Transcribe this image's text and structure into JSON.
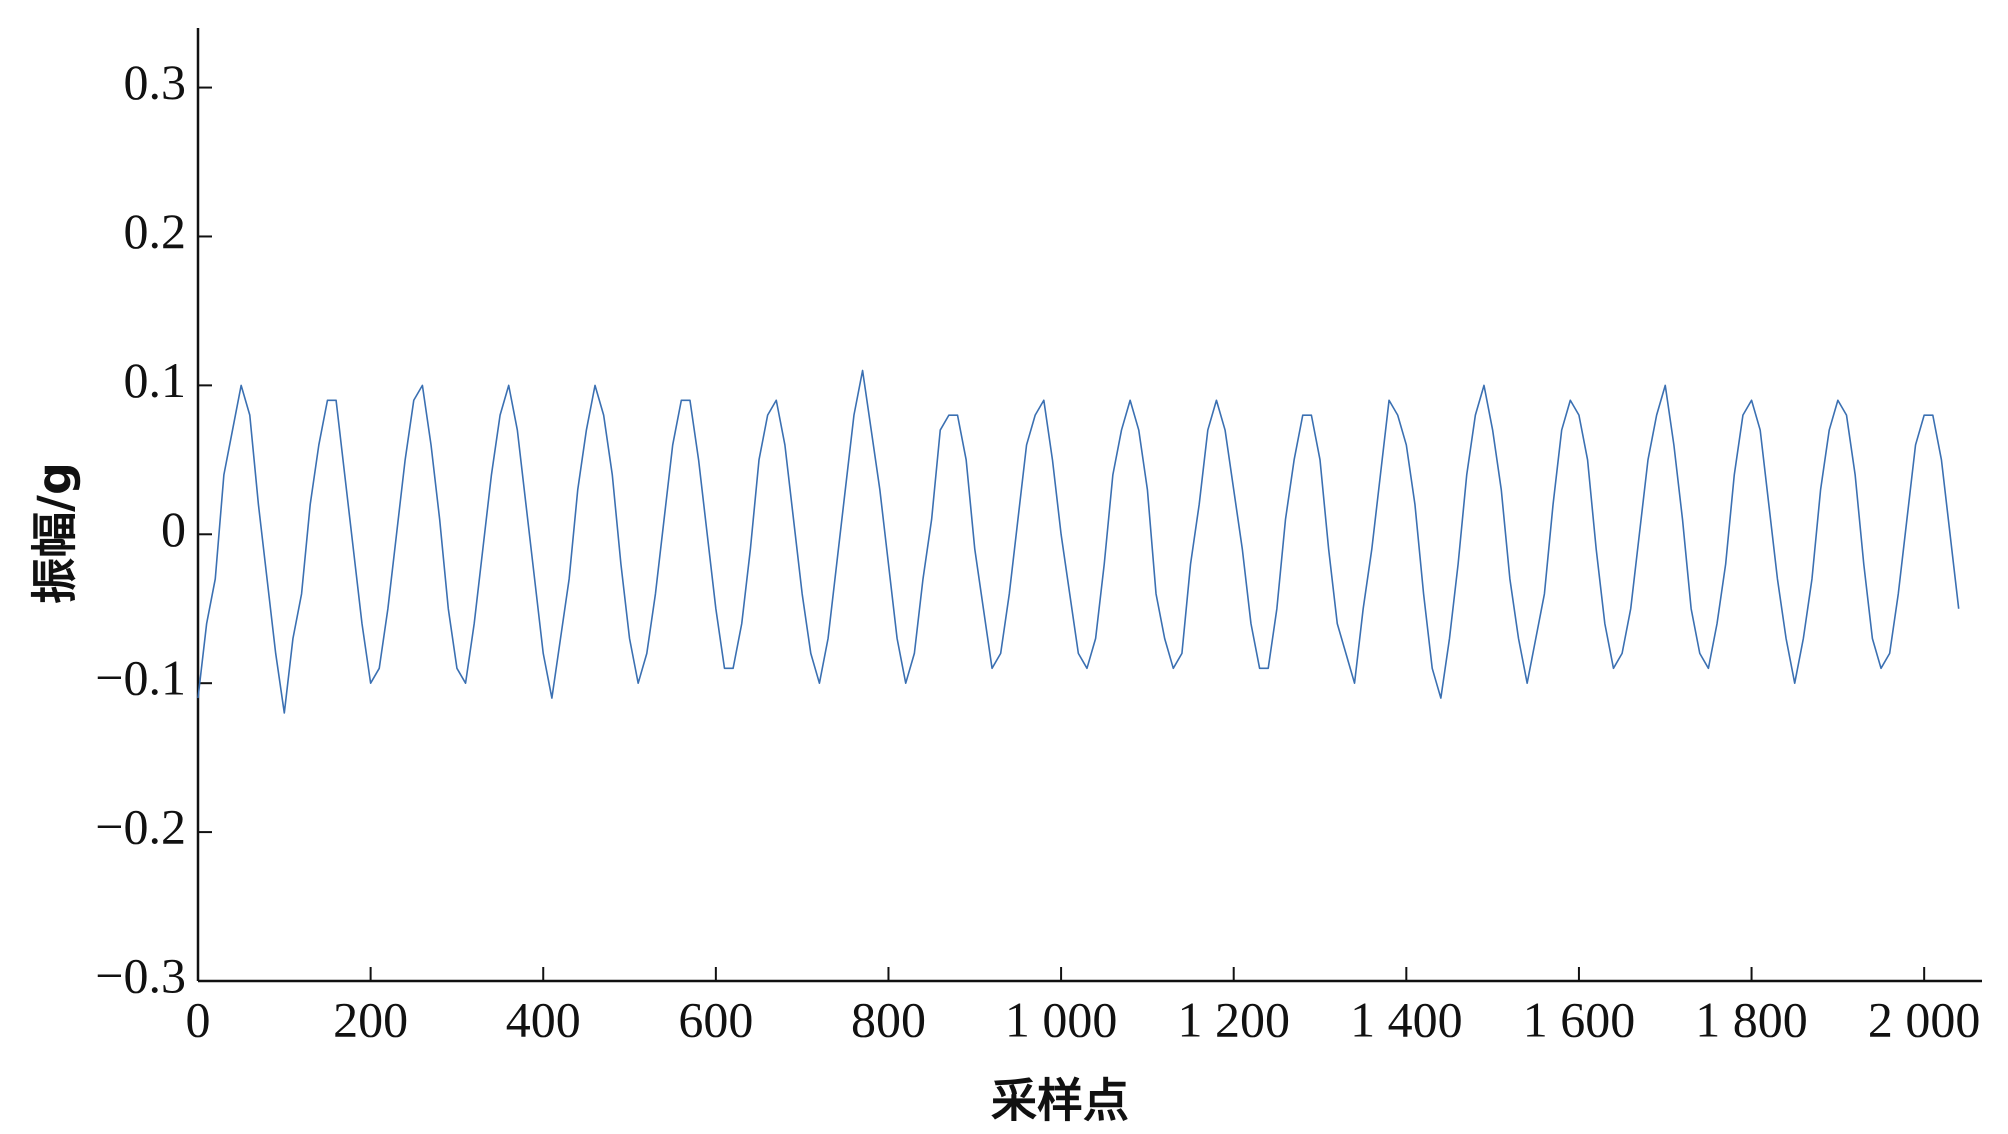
{
  "chart_data": {
    "type": "line",
    "xlabel": "采样点",
    "ylabel": "振幅/g",
    "xlim": [
      0,
      2067
    ],
    "ylim": [
      -0.3,
      0.34
    ],
    "xticks": [
      0,
      200,
      400,
      600,
      800,
      {
        "value": 1000,
        "label": "1 000"
      },
      {
        "value": 1200,
        "label": "1 200"
      },
      {
        "value": 1400,
        "label": "1 400"
      },
      {
        "value": 1600,
        "label": "1 600"
      },
      {
        "value": 1800,
        "label": "1 800"
      },
      {
        "value": 2000,
        "label": "2 000"
      }
    ],
    "yticks": [
      {
        "value": -0.3,
        "label": "−0.3"
      },
      {
        "value": -0.2,
        "label": "−0.2"
      },
      {
        "value": -0.1,
        "label": "−0.1"
      },
      0,
      0.1,
      0.2,
      0.3
    ],
    "grid": false,
    "series": [
      {
        "color": "#3b70b2",
        "x": [
          0,
          10,
          20,
          30,
          40,
          50,
          60,
          70,
          80,
          90,
          100,
          110,
          120,
          130,
          140,
          150,
          160,
          170,
          180,
          190,
          200,
          210,
          220,
          230,
          240,
          250,
          260,
          270,
          280,
          290,
          300,
          310,
          320,
          330,
          340,
          350,
          360,
          370,
          380,
          390,
          400,
          410,
          420,
          430,
          440,
          450,
          460,
          470,
          480,
          490,
          500,
          510,
          520,
          530,
          540,
          550,
          560,
          570,
          580,
          590,
          600,
          610,
          620,
          630,
          640,
          650,
          660,
          670,
          680,
          690,
          700,
          710,
          720,
          730,
          740,
          750,
          760,
          770,
          780,
          790,
          800,
          810,
          820,
          830,
          840,
          850,
          860,
          870,
          880,
          890,
          900,
          910,
          920,
          930,
          940,
          950,
          960,
          970,
          980,
          990,
          1000,
          1010,
          1020,
          1030,
          1040,
          1050,
          1060,
          1070,
          1080,
          1090,
          1100,
          1110,
          1120,
          1130,
          1140,
          1150,
          1160,
          1170,
          1180,
          1190,
          1200,
          1210,
          1220,
          1230,
          1240,
          1250,
          1260,
          1270,
          1280,
          1290,
          1300,
          1310,
          1320,
          1330,
          1340,
          1350,
          1360,
          1370,
          1380,
          1390,
          1400,
          1410,
          1420,
          1430,
          1440,
          1450,
          1460,
          1470,
          1480,
          1490,
          1500,
          1510,
          1520,
          1530,
          1540,
          1550,
          1560,
          1570,
          1580,
          1590,
          1600,
          1610,
          1620,
          1630,
          1640,
          1650,
          1660,
          1670,
          1680,
          1690,
          1700,
          1710,
          1720,
          1730,
          1740,
          1750,
          1760,
          1770,
          1780,
          1790,
          1800,
          1810,
          1820,
          1830,
          1840,
          1850,
          1860,
          1870,
          1880,
          1890,
          1900,
          1910,
          1920,
          1930,
          1940,
          1950,
          1960,
          1970,
          1980,
          1990,
          2000,
          2010,
          2020,
          2030,
          2040
        ],
        "values": [
          -0.11,
          -0.06,
          -0.03,
          0.04,
          0.07,
          0.1,
          0.08,
          0.02,
          -0.03,
          -0.08,
          -0.12,
          -0.07,
          -0.04,
          0.02,
          0.06,
          0.09,
          0.09,
          0.04,
          -0.01,
          -0.06,
          -0.1,
          -0.09,
          -0.05,
          0.0,
          0.05,
          0.09,
          0.1,
          0.06,
          0.01,
          -0.05,
          -0.09,
          -0.1,
          -0.06,
          -0.01,
          0.04,
          0.08,
          0.1,
          0.07,
          0.02,
          -0.03,
          -0.08,
          -0.11,
          -0.07,
          -0.03,
          0.03,
          0.07,
          0.1,
          0.08,
          0.04,
          -0.02,
          -0.07,
          -0.1,
          -0.08,
          -0.04,
          0.01,
          0.06,
          0.09,
          0.09,
          0.05,
          0.0,
          -0.05,
          -0.09,
          -0.09,
          -0.06,
          -0.01,
          0.05,
          0.08,
          0.09,
          0.06,
          0.01,
          -0.04,
          -0.08,
          -0.1,
          -0.07,
          -0.02,
          0.03,
          0.08,
          0.11,
          0.07,
          0.03,
          -0.02,
          -0.07,
          -0.1,
          -0.08,
          -0.03,
          0.01,
          0.07,
          0.08,
          0.08,
          0.05,
          -0.01,
          -0.05,
          -0.09,
          -0.08,
          -0.04,
          0.01,
          0.06,
          0.08,
          0.09,
          0.05,
          0.0,
          -0.04,
          -0.08,
          -0.09,
          -0.07,
          -0.02,
          0.04,
          0.07,
          0.09,
          0.07,
          0.03,
          -0.04,
          -0.07,
          -0.09,
          -0.08,
          -0.02,
          0.02,
          0.07,
          0.09,
          0.07,
          0.03,
          -0.01,
          -0.06,
          -0.09,
          -0.09,
          -0.05,
          0.01,
          0.05,
          0.08,
          0.08,
          0.05,
          -0.01,
          -0.06,
          -0.08,
          -0.1,
          -0.05,
          -0.01,
          0.04,
          0.09,
          0.08,
          0.06,
          0.02,
          -0.04,
          -0.09,
          -0.11,
          -0.07,
          -0.02,
          0.04,
          0.08,
          0.1,
          0.07,
          0.03,
          -0.03,
          -0.07,
          -0.1,
          -0.07,
          -0.04,
          0.02,
          0.07,
          0.09,
          0.08,
          0.05,
          -0.01,
          -0.06,
          -0.09,
          -0.08,
          -0.05,
          0.0,
          0.05,
          0.08,
          0.1,
          0.06,
          0.01,
          -0.05,
          -0.08,
          -0.09,
          -0.06,
          -0.02,
          0.04,
          0.08,
          0.09,
          0.07,
          0.02,
          -0.03,
          -0.07,
          -0.1,
          -0.07,
          -0.03,
          0.03,
          0.07,
          0.09,
          0.08,
          0.04,
          -0.02,
          -0.07,
          -0.09,
          -0.08,
          -0.04,
          0.01,
          0.06,
          0.08,
          0.08,
          0.05,
          0.0,
          -0.05
        ]
      }
    ]
  }
}
